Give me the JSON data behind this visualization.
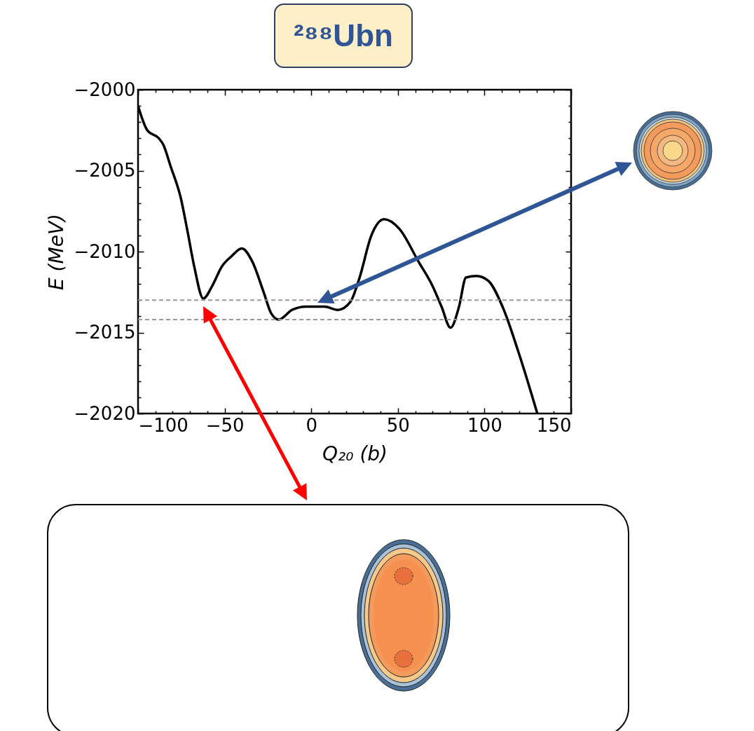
{
  "chart_data": {
    "type": "line",
    "title": "²⁸⁸Ubn",
    "xlabel": "Q₂₀ (b)",
    "ylabel": "E (MeV)",
    "x": [
      -100,
      -94.7,
      -88,
      -85.4,
      -81.3,
      -75.3,
      -71.7,
      -67.6,
      -62.3,
      -57.1,
      -51.5,
      -46.2,
      -40.1,
      -34.1,
      -27.2,
      -23.2,
      -18.7,
      -11.1,
      -3,
      7.6,
      15.3,
      22.6,
      27.9,
      34.7,
      42,
      50.9,
      61.8,
      69.9,
      75.2,
      80.4,
      85.3,
      89.3,
      95.4,
      102.2,
      110.4,
      119.6,
      130.5
    ],
    "series": [
      {
        "color": "#000000",
        "values": [
          -2001,
          -2002.5,
          -2003,
          -2003.4,
          -2004.7,
          -2006.7,
          -2008.6,
          -2010.9,
          -2012.9,
          -2012.1,
          -2010.9,
          -2010.3,
          -2009.8,
          -2010.6,
          -2012.6,
          -2013.8,
          -2014.2,
          -2013.6,
          -2013.4,
          -2013.4,
          -2013.6,
          -2013.1,
          -2011.6,
          -2009,
          -2008,
          -2008.6,
          -2010.6,
          -2012.1,
          -2013.4,
          -2014.7,
          -2013.4,
          -2011.6,
          -2011.5,
          -2011.8,
          -2013.4,
          -2016.2,
          -2020
        ]
      }
    ],
    "xlim": [
      -100,
      150
    ],
    "ylim": [
      -2020,
      -2000
    ],
    "xticks": [
      -100,
      {
        "value": -90,
        "label": null
      },
      {
        "value": -80,
        "label": null
      },
      {
        "value": -70,
        "label": null
      },
      {
        "value": -60,
        "label": null
      },
      -50,
      {
        "value": -40,
        "label": null
      },
      {
        "value": -30,
        "label": null
      },
      {
        "value": -20,
        "label": null
      },
      {
        "value": -10,
        "label": null
      },
      0,
      {
        "value": 10,
        "label": null
      },
      {
        "value": 20,
        "label": null
      },
      {
        "value": 30,
        "label": null
      },
      {
        "value": 40,
        "label": null
      },
      50,
      {
        "value": 60,
        "label": null
      },
      {
        "value": 70,
        "label": null
      },
      {
        "value": 80,
        "label": null
      },
      {
        "value": 90,
        "label": null
      },
      100,
      {
        "value": 110,
        "label": null
      },
      {
        "value": 120,
        "label": null
      },
      {
        "value": 130,
        "label": null
      },
      {
        "value": 140,
        "label": null
      },
      150
    ],
    "yticks": [
      -2020,
      {
        "value": -2019,
        "label": null
      },
      {
        "value": -2018,
        "label": null
      },
      {
        "value": -2017,
        "label": null
      },
      {
        "value": -2016,
        "label": null
      },
      -2015,
      {
        "value": -2014,
        "label": null
      },
      {
        "value": -2013,
        "label": null
      },
      {
        "value": -2012,
        "label": null
      },
      {
        "value": -2011,
        "label": null
      },
      -2010,
      {
        "value": -2009,
        "label": null
      },
      {
        "value": -2008,
        "label": null
      },
      {
        "value": -2007,
        "label": null
      },
      {
        "value": -2006,
        "label": null
      },
      -2005,
      {
        "value": -2004,
        "label": null
      },
      {
        "value": -2003,
        "label": null
      },
      {
        "value": -2002,
        "label": null
      },
      {
        "value": -2001,
        "label": null
      },
      -2000
    ],
    "ref_lines": [
      {
        "axis": "y",
        "value": -2013,
        "color": "#999999",
        "line_style": "dashed"
      },
      {
        "axis": "y",
        "value": -2014.2,
        "color": "#999999",
        "line_style": "dashed"
      }
    ],
    "grid": false,
    "marker": "none",
    "line_style": "solid"
  }
}
